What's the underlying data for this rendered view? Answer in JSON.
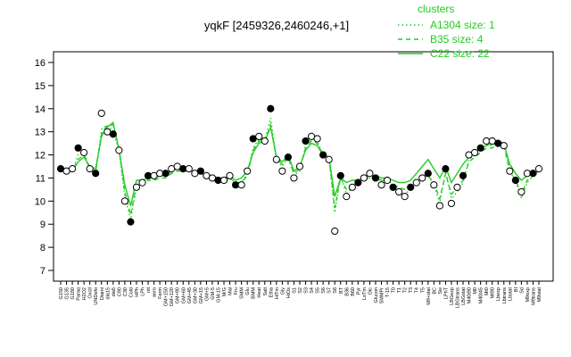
{
  "chart_data": {
    "type": "line",
    "title": "yqkF [2459326,2460246,+1]",
    "xlabel": "",
    "ylabel": "",
    "ylim": [
      7,
      16
    ],
    "yticks": [
      7,
      8,
      9,
      10,
      11,
      12,
      13,
      14,
      15,
      16
    ],
    "grid": false,
    "legend_position": "top-right",
    "legend_title": "clusters",
    "categories": [
      "G150",
      "G135",
      "G180",
      "Paraq",
      "H2O2",
      "Oxctl",
      "UNDefo",
      "Diami",
      "dia15",
      "dia5",
      "C90",
      "C30",
      "Cold",
      "HPh",
      "LPh",
      "nit",
      "aero",
      "Ferm",
      "GM+150",
      "GM+120",
      "GM+90",
      "GM+60",
      "GM+45",
      "GM+30",
      "GM+15",
      "GM+5",
      "GM-5",
      "GM-15",
      "M/G",
      "Mal",
      "Fru",
      "SMM",
      "Glu",
      "BMM",
      "Heat",
      "Salt",
      "Etha",
      "HiTm",
      "Gly",
      "HiOs",
      "S1",
      "S2",
      "S3",
      "S4",
      "S5",
      "S6",
      "S7",
      "S8",
      "BT",
      "B36",
      "B60",
      "Pyr",
      "LoTm",
      "Glc",
      "Glucon",
      "SMMPr",
      "T-15",
      "T0",
      "T1",
      "T2",
      "T3",
      "T4",
      "T5",
      "M9+stat",
      "BC",
      "Sw",
      "LPhT",
      "LBGexp",
      "LBGtrans",
      "LBGstat",
      "M40t90",
      "M0",
      "M40t45",
      "Mt0",
      "Mt90",
      "Lbexp",
      "Lbtrans",
      "Lbstat",
      "BI",
      "Sd",
      "M9exp",
      "M9trans",
      "M9stat"
    ],
    "series": [
      {
        "name": "A1304 size: 1",
        "style": "dotted",
        "color": "#22cc22",
        "values": [
          11.3,
          11.3,
          11.3,
          12.0,
          12.2,
          11.3,
          11.2,
          13.1,
          13.3,
          13.0,
          12.2,
          10.2,
          9.2,
          10.6,
          10.8,
          11.0,
          11.0,
          11.1,
          11.1,
          11.3,
          11.4,
          11.3,
          11.4,
          11.2,
          11.3,
          11.1,
          11.0,
          11.0,
          10.9,
          11.0,
          10.7,
          10.8,
          11.2,
          12.3,
          12.7,
          12.6,
          13.6,
          11.8,
          11.5,
          11.9,
          11.1,
          11.3,
          12.4,
          12.7,
          12.6,
          12.0,
          11.9,
          9.5,
          11.1,
          10.3,
          10.6,
          10.8,
          11.0,
          11.0,
          11.1,
          10.8,
          10.9,
          10.6,
          10.5,
          10.3,
          10.5,
          10.8,
          11.0,
          11.1,
          10.7,
          9.9,
          11.3,
          10.1,
          10.4,
          10.8,
          11.8,
          12.0,
          12.2,
          12.4,
          12.4,
          12.6,
          12.5,
          11.3,
          10.9,
          10.1,
          10.8,
          11.1,
          11.3
        ]
      },
      {
        "name": "B35 size: 4",
        "style": "dashed",
        "color": "#22cc22",
        "values": [
          11.3,
          11.3,
          11.3,
          11.8,
          12.0,
          11.4,
          11.3,
          12.9,
          13.3,
          13.3,
          12.3,
          10.4,
          9.4,
          10.7,
          10.8,
          10.9,
          10.9,
          11.0,
          11.0,
          11.2,
          11.3,
          11.3,
          11.3,
          11.2,
          11.2,
          11.1,
          11.0,
          11.0,
          10.9,
          11.0,
          10.8,
          10.8,
          11.1,
          12.2,
          12.6,
          12.6,
          13.3,
          11.8,
          11.6,
          11.9,
          11.2,
          11.4,
          12.3,
          12.6,
          12.5,
          12.0,
          11.9,
          9.7,
          11.0,
          10.5,
          10.7,
          10.8,
          10.9,
          11.0,
          11.0,
          10.9,
          10.9,
          10.7,
          10.6,
          10.5,
          10.6,
          10.8,
          10.9,
          11.1,
          10.8,
          10.1,
          11.2,
          10.3,
          10.6,
          10.9,
          11.7,
          11.9,
          12.1,
          12.3,
          12.3,
          12.5,
          12.4,
          11.3,
          10.9,
          10.3,
          10.9,
          11.1,
          11.3
        ]
      },
      {
        "name": "C22 size: 22",
        "style": "solid",
        "color": "#22cc22",
        "values": [
          11.4,
          11.3,
          11.3,
          11.7,
          11.9,
          11.5,
          11.4,
          12.8,
          13.2,
          13.4,
          12.2,
          10.7,
          9.8,
          10.9,
          10.9,
          11.0,
          11.0,
          11.1,
          11.2,
          11.3,
          11.4,
          11.3,
          11.3,
          11.3,
          11.2,
          11.1,
          11.1,
          11.0,
          11.0,
          11.1,
          10.9,
          11.0,
          11.3,
          12.1,
          12.5,
          12.6,
          13.2,
          11.9,
          11.7,
          12.0,
          11.3,
          11.5,
          12.2,
          12.5,
          12.4,
          12.0,
          11.9,
          10.2,
          11.0,
          10.8,
          10.9,
          10.9,
          11.0,
          11.1,
          11.1,
          11.0,
          11.0,
          10.9,
          10.8,
          10.8,
          10.9,
          11.2,
          11.5,
          11.8,
          11.4,
          11.0,
          11.5,
          10.8,
          11.2,
          11.6,
          11.9,
          12.1,
          12.3,
          12.4,
          12.5,
          12.6,
          12.5,
          11.6,
          11.2,
          10.9,
          11.1,
          11.2,
          11.3
        ]
      },
      {
        "name": "yqkF",
        "style": "points",
        "color": "#000000",
        "values": [
          11.4,
          11.3,
          11.4,
          12.3,
          12.1,
          11.4,
          11.2,
          13.8,
          13.0,
          12.9,
          12.2,
          10.0,
          9.1,
          10.6,
          10.8,
          11.1,
          11.1,
          11.2,
          11.2,
          11.4,
          11.5,
          11.4,
          11.4,
          11.2,
          11.3,
          11.1,
          11.0,
          10.9,
          10.9,
          11.1,
          10.7,
          10.7,
          11.3,
          12.7,
          12.8,
          12.6,
          14.0,
          11.8,
          11.3,
          11.9,
          11.0,
          11.5,
          12.6,
          12.8,
          12.7,
          12.0,
          11.8,
          8.7,
          11.1,
          10.2,
          10.6,
          10.8,
          11.0,
          11.2,
          11.0,
          10.7,
          10.9,
          10.6,
          10.4,
          10.2,
          10.6,
          10.8,
          11.0,
          11.2,
          10.7,
          9.8,
          11.4,
          9.9,
          10.6,
          11.1,
          12.0,
          12.1,
          12.3,
          12.6,
          12.6,
          12.5,
          12.4,
          11.3,
          10.9,
          10.4,
          11.2,
          11.2,
          11.4
        ]
      }
    ]
  }
}
